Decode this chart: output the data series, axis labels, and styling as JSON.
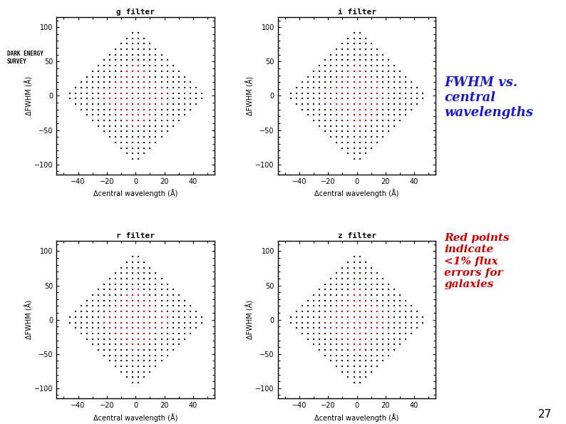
{
  "filters": [
    "g filter",
    "i filter",
    "r filter",
    "z filter"
  ],
  "xlim": [
    -55,
    55
  ],
  "ylim": [
    -115,
    115
  ],
  "xticks": [
    -40,
    -20,
    0,
    20,
    40
  ],
  "yticks": [
    -100,
    -50,
    0,
    50,
    100
  ],
  "xlabel": "Δcentral wavelength (Å)",
  "ylabel": "ΔFWHM (Å)",
  "dot_color_black": "#111111",
  "dot_color_red": "#cc0000",
  "title_text1": "FWHM vs.\ncentral\nwavelengths",
  "title_color1": "#1a1acc",
  "title_text2": "Red points\nindicate\n<1% flux\nerrors for\ngalaxies",
  "title_color2": "#cc0000",
  "bg_color": "#ffffff",
  "page_number": "27",
  "step_x": 4,
  "step_y": 8,
  "outer_radius_x": 50,
  "outer_radius_y": 100,
  "inner_radius_x": 25,
  "inner_radius_y": 55,
  "dot_size": 3.5
}
